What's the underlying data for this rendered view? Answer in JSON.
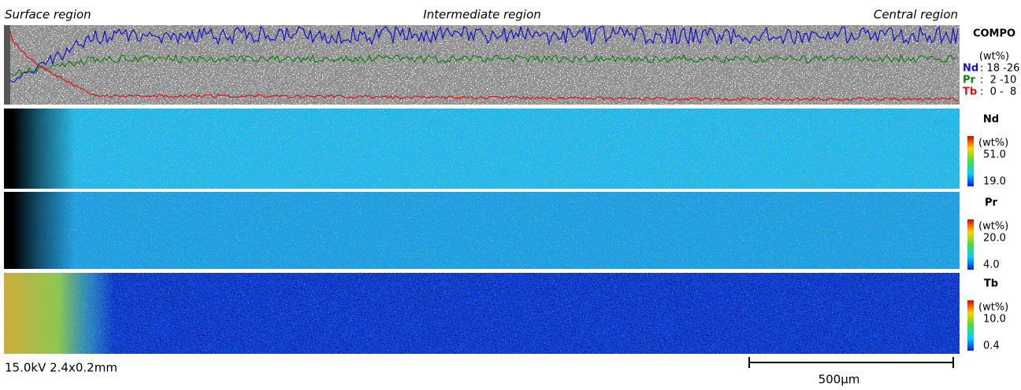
{
  "regions": [
    "Surface region",
    "Intermediate region",
    "Central region"
  ],
  "compo": {
    "title": "COMPO",
    "unit": "(wt%)",
    "elements": [
      {
        "name": "Nd",
        "range": ": 18 -26",
        "color": "#1010d0"
      },
      {
        "name": "Pr",
        "range": ":  2 -10",
        "color": "#108010"
      },
      {
        "name": "Tb",
        "range": ":  0 -  8",
        "color": "#e01010"
      }
    ]
  },
  "maps": [
    {
      "element": "Nd",
      "unit": "(wt%)",
      "max": "51.0",
      "min": "19.0"
    },
    {
      "element": "Pr",
      "unit": "(wt%)",
      "max": "20.0",
      "min": "4.0"
    },
    {
      "element": "Tb",
      "unit": "(wt%)",
      "max": "10.0",
      "min": "0.4"
    }
  ],
  "footer": {
    "conditions": "15.0kV 2.4x0.2mm",
    "scale_bar": "500µm"
  }
}
